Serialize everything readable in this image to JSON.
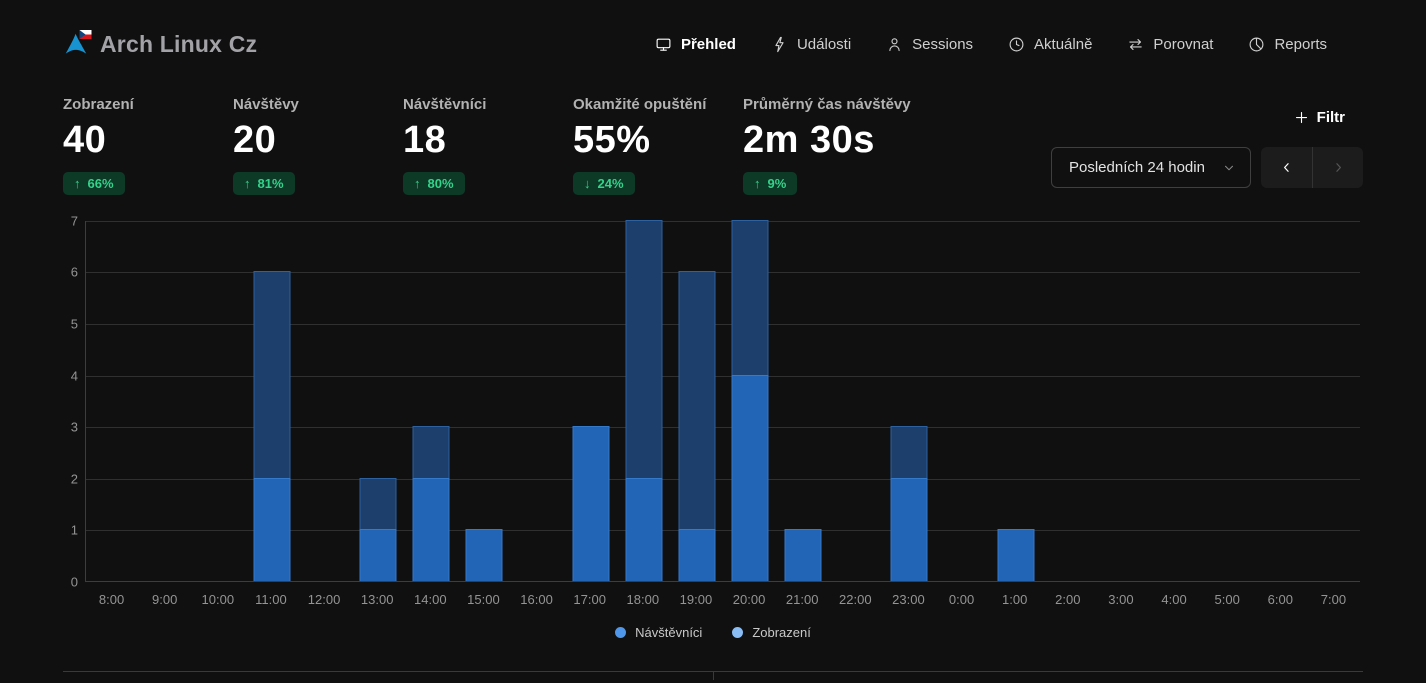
{
  "app": {
    "title": "Arch Linux Cz"
  },
  "nav": {
    "items": [
      {
        "label": "Přehled",
        "icon": "monitor-icon",
        "active": true
      },
      {
        "label": "Události",
        "icon": "lightning-icon",
        "active": false
      },
      {
        "label": "Sessions",
        "icon": "person-icon",
        "active": false
      },
      {
        "label": "Aktuálně",
        "icon": "clock-icon",
        "active": false
      },
      {
        "label": "Porovnat",
        "icon": "swap-arrows-icon",
        "active": false
      },
      {
        "label": "Reports",
        "icon": "pie-chart-icon",
        "active": false
      }
    ]
  },
  "metrics": [
    {
      "label": "Zobrazení",
      "value": "40",
      "arrow": "↑",
      "change": "66%"
    },
    {
      "label": "Návštěvy",
      "value": "20",
      "arrow": "↑",
      "change": "81%"
    },
    {
      "label": "Návštěvníci",
      "value": "18",
      "arrow": "↑",
      "change": "80%"
    },
    {
      "label": "Okamžité opuštění",
      "value": "55%",
      "arrow": "↓",
      "change": "24%"
    },
    {
      "label": "Průměrný čas návštěvy",
      "value": "2m 30s",
      "arrow": "↑",
      "change": "9%"
    }
  ],
  "controls": {
    "filter_label": "Filtr",
    "date_range_value": "Posledních 24 hodin",
    "prev_icon": "chevron-left-icon",
    "next_icon": "chevron-right-icon",
    "next_disabled": true
  },
  "chart_data": {
    "type": "bar",
    "categories": [
      "8:00",
      "9:00",
      "10:00",
      "11:00",
      "12:00",
      "13:00",
      "14:00",
      "15:00",
      "16:00",
      "17:00",
      "18:00",
      "19:00",
      "20:00",
      "21:00",
      "22:00",
      "23:00",
      "0:00",
      "1:00",
      "2:00",
      "3:00",
      "4:00",
      "5:00",
      "6:00",
      "7:00"
    ],
    "series": [
      {
        "name": "Zobrazení",
        "values": [
          0,
          0,
          0,
          6,
          0,
          2,
          3,
          1,
          0,
          3,
          7,
          6,
          7,
          1,
          0,
          3,
          0,
          1,
          0,
          0,
          0,
          0,
          0,
          0
        ],
        "fill": "#1d3f6b",
        "border": "#2e619f"
      },
      {
        "name": "Návštěvníci",
        "values": [
          0,
          0,
          0,
          2,
          0,
          1,
          2,
          1,
          0,
          3,
          2,
          1,
          4,
          1,
          0,
          2,
          0,
          1,
          0,
          0,
          0,
          0,
          0,
          0
        ],
        "fill": "#2264b6",
        "border": "#3579cb"
      }
    ],
    "title": "",
    "xlabel": "",
    "ylabel": "",
    "ylim": [
      0,
      7
    ],
    "yticks": [
      0,
      1,
      2,
      3,
      4,
      5,
      6,
      7
    ],
    "grid": true,
    "legend_position": "bottom",
    "overlay": true
  },
  "legend": [
    {
      "label": "Návštěvníci",
      "color": "#4f97ea"
    },
    {
      "label": "Zobrazení",
      "color": "#8abdf4"
    }
  ],
  "colors": {
    "background": "#101010",
    "accent_green_text": "#35d28a",
    "accent_green_bg": "#0d3a27",
    "bar_visitors": "#2264b6",
    "bar_views": "#1d3f6b",
    "logo_blue": "#1793d1"
  }
}
